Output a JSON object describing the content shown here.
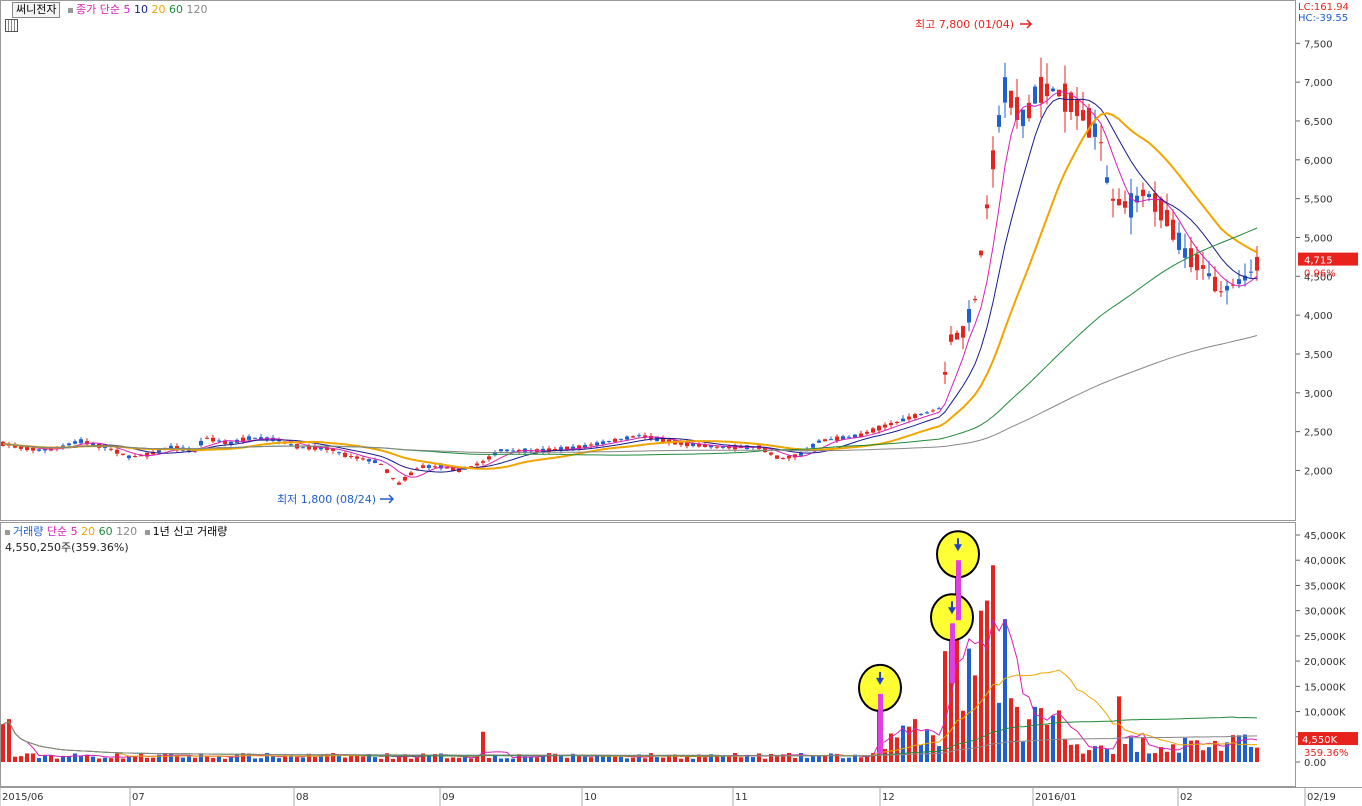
{
  "header": {
    "stock_name": "써니전자",
    "ma_legend": {
      "label": "종가 단순",
      "periods": [
        "5",
        "10",
        "20",
        "60",
        "120"
      ]
    },
    "lc": "LC:161.94",
    "hc": "HC:-39.55"
  },
  "volume_header": {
    "label": "거래량",
    "ma_label": "단순",
    "periods": [
      "5",
      "20",
      "60",
      "120"
    ],
    "new_high_label": "1년 신고 거래량",
    "current": "4,550,250주(359.36%)"
  },
  "colors": {
    "up": "#e8231d",
    "down": "#1f5fd1",
    "ma5": "#d81fb8",
    "ma10": "#1a1a8c",
    "ma20": "#f0a500",
    "ma60": "#1f8a3a",
    "ma120": "#888888",
    "highlight": "#ffff33"
  },
  "chart_data": [
    {
      "type": "candlestick",
      "yticks": [
        "7,500",
        "7,000",
        "6,500",
        "6,000",
        "5,500",
        "5,000",
        "4,500",
        "4,000",
        "3,500",
        "3,000",
        "2,500",
        "2,000"
      ],
      "ylim": [
        1700,
        7850
      ],
      "x_labels": [
        "2015/06",
        "07",
        "08",
        "09",
        "10",
        "11",
        "12",
        "2016/01",
        "02",
        "02/19"
      ],
      "high_annotation": "최고 7,800 (01/04)",
      "low_annotation": "최저 1,800 (08/24)",
      "current_price": "4,715",
      "current_change": "0.96%",
      "last_close": 4715,
      "ma_end_values": {
        "ma5": 4570,
        "ma10": 4620,
        "ma20": 4900,
        "ma60": 4650,
        "ma120": 3500
      }
    },
    {
      "type": "bar",
      "name": "거래량",
      "yticks": [
        "45,000K",
        "40,000K",
        "35,000K",
        "30,000K",
        "25,000K",
        "20,000K",
        "15,000K",
        "10,000K",
        "5,000K",
        "0.00"
      ],
      "ylim": [
        0,
        47000
      ],
      "current_label": "4,550K",
      "current_ratio": "359.36%",
      "highlighted_values_k": [
        13500,
        27500,
        40000
      ]
    }
  ]
}
